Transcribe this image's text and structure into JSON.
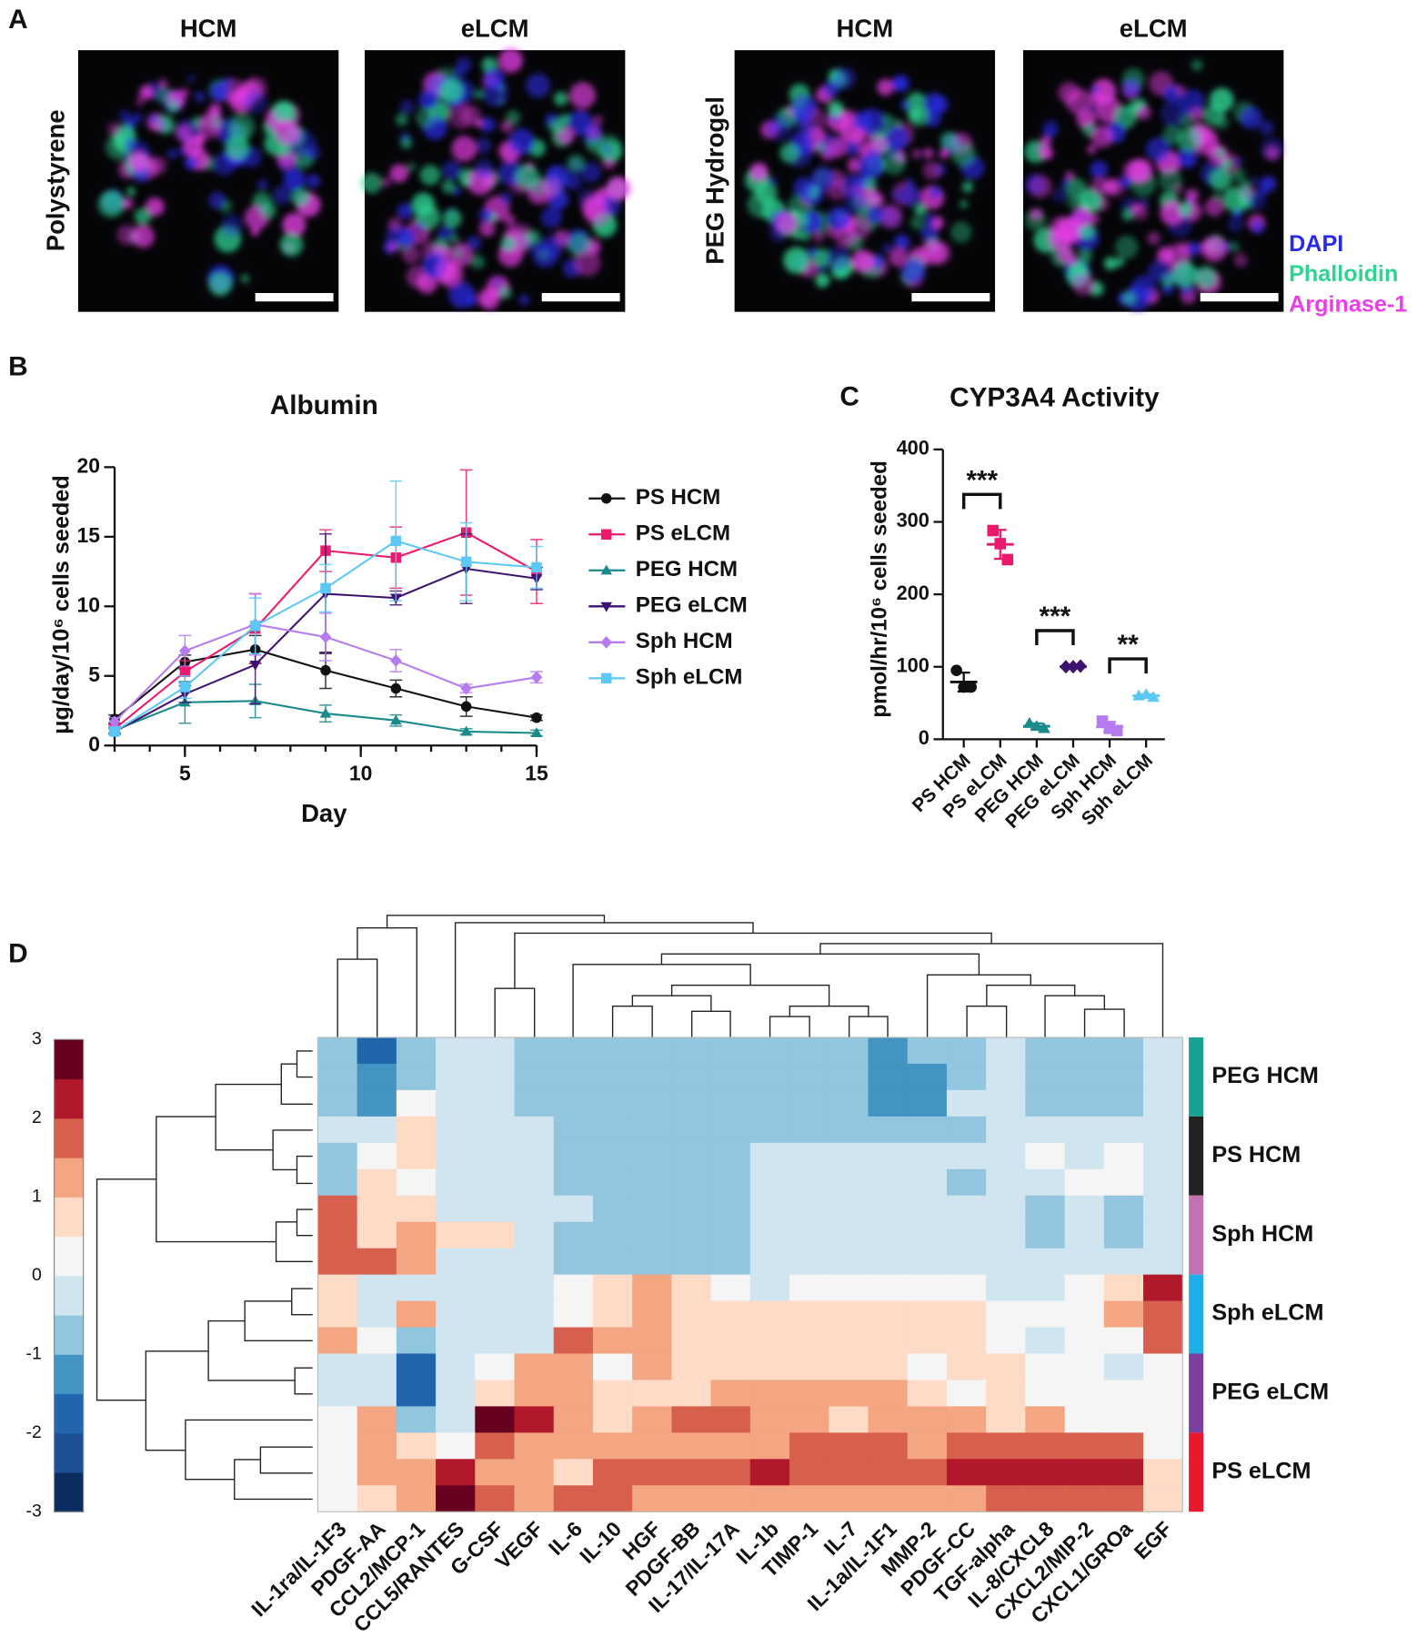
{
  "panel_labels": [
    "A",
    "B",
    "C",
    "D"
  ],
  "microscopy": {
    "column_titles": [
      "HCM",
      "eLCM",
      "HCM",
      "eLCM"
    ],
    "row_titles": [
      "Polystyrene",
      "PEG Hydrogel"
    ],
    "stains": [
      {
        "name": "DAPI",
        "color": "#2a2ae6"
      },
      {
        "name": "Phalloidin",
        "color": "#2fd493"
      },
      {
        "name": "Arginase-1",
        "color": "#ea3fe8"
      }
    ]
  },
  "chart_data": [
    {
      "type": "line",
      "title": "Albumin",
      "x_label": "Day",
      "y_label": "μg/day/10⁶ cells seeded",
      "x": [
        3,
        5,
        7,
        9,
        11,
        13,
        15
      ],
      "xlim": [
        3,
        15
      ],
      "xticks": [
        5,
        10,
        15
      ],
      "ylim": [
        0,
        20
      ],
      "yticks": [
        0,
        5,
        10,
        15,
        20
      ],
      "legend": "right",
      "series": [
        {
          "name": "PS HCM",
          "color": "#111111",
          "marker": "circle",
          "values": [
            1.9,
            6.0,
            6.9,
            5.4,
            4.1,
            2.8,
            2.0
          ],
          "errors": [
            0.3,
            0.5,
            1.0,
            1.3,
            0.6,
            0.7,
            0.2
          ]
        },
        {
          "name": "PS eLCM",
          "color": "#ec1a6c",
          "marker": "square",
          "values": [
            1.2,
            5.3,
            8.4,
            14.0,
            13.5,
            15.3,
            12.5
          ],
          "errors": [
            0.3,
            0.8,
            2.5,
            1.5,
            2.2,
            4.5,
            2.3
          ]
        },
        {
          "name": "PEG HCM",
          "color": "#1a8a8a",
          "marker": "triangle",
          "values": [
            1.1,
            3.1,
            3.2,
            2.3,
            1.8,
            1.0,
            0.9
          ],
          "errors": [
            0.2,
            1.5,
            1.2,
            0.6,
            0.4,
            0.2,
            0.2
          ]
        },
        {
          "name": "PEG eLCM",
          "color": "#3d1270",
          "marker": "triangle-down",
          "values": [
            1.0,
            3.7,
            5.8,
            10.9,
            10.6,
            12.7,
            12.0
          ],
          "errors": [
            0.2,
            0.6,
            2.8,
            4.3,
            0.5,
            2.5,
            0.8
          ]
        },
        {
          "name": "Sph HCM",
          "color": "#b57bef",
          "marker": "diamond",
          "values": [
            1.7,
            6.8,
            8.7,
            7.8,
            6.1,
            4.1,
            4.9
          ],
          "errors": [
            0.3,
            1.1,
            2.2,
            1.7,
            0.8,
            0.3,
            0.4
          ]
        },
        {
          "name": "Sph eLCM",
          "color": "#5bc8f5",
          "marker": "square",
          "values": [
            1.0,
            4.2,
            8.6,
            11.3,
            14.7,
            13.2,
            12.8
          ],
          "errors": [
            0.2,
            0.8,
            2.0,
            1.7,
            4.3,
            2.8,
            1.5
          ]
        }
      ]
    },
    {
      "type": "dot",
      "title": "CYP3A4 Activity",
      "y_label": "pmol/hr/10⁶ cells seeded",
      "categories": [
        "PS HCM",
        "PS eLCM",
        "PEG HCM",
        "PEG eLCM",
        "Sph HCM",
        "Sph eLCM"
      ],
      "colors": [
        "#111111",
        "#ec1a6c",
        "#1a8a8a",
        "#3d1270",
        "#b57bef",
        "#5bc8f5"
      ],
      "markers": [
        "circle",
        "square",
        "triangle",
        "diamond",
        "square",
        "triangle"
      ],
      "values": [
        [
          95,
          72,
          72
        ],
        [
          288,
          270,
          248
        ],
        [
          22,
          18,
          15
        ],
        [
          100,
          100,
          101
        ],
        [
          25,
          15,
          12
        ],
        [
          60,
          62,
          58
        ]
      ],
      "means": [
        79,
        269,
        18,
        100,
        17,
        60
      ],
      "sd": [
        13,
        20,
        4,
        1,
        7,
        2
      ],
      "ylim": [
        0,
        400
      ],
      "yticks": [
        0,
        100,
        200,
        300,
        400
      ],
      "annotations": [
        {
          "text": "***",
          "between": [
            "PS HCM",
            "PS eLCM"
          ]
        },
        {
          "text": "***",
          "between": [
            "PEG HCM",
            "PEG eLCM"
          ]
        },
        {
          "text": "**",
          "between": [
            "Sph HCM",
            "Sph eLCM"
          ]
        }
      ]
    },
    {
      "type": "heatmap",
      "columns": [
        "IL-1ra/IL-1F3",
        "PDGF-AA",
        "CCL2/MCP-1",
        "CCL5/RANTES",
        "G-CSF",
        "VEGF",
        "IL-6",
        "IL-10",
        "HGF",
        "PDGF-BB",
        "IL-17/IL-17A",
        "IL-1b",
        "TIMP-1",
        "IL-7",
        "IL-1a/IL-1F1",
        "MMP-2",
        "PDGF-CC",
        "TGF-alpha",
        "IL-8/CXCL8",
        "CXCL2/MIP-2",
        "CXCL1/GROa",
        "EGF"
      ],
      "row_groups": [
        {
          "name": "PEG HCM",
          "color": "#16a393"
        },
        {
          "name": "PS HCM",
          "color": "#222222"
        },
        {
          "name": "Sph HCM",
          "color": "#c271b3"
        },
        {
          "name": "Sph eLCM",
          "color": "#1eaee8"
        },
        {
          "name": "PEG eLCM",
          "color": "#7b3fa0"
        },
        {
          "name": "PS eLCM",
          "color": "#e8192c"
        }
      ],
      "zlim": [
        -3,
        3
      ],
      "zticks": [
        -3,
        -2,
        -1,
        0,
        1,
        2,
        3
      ],
      "colors": [
        "#0b2c5e",
        "#1d4f94",
        "#2166ac",
        "#4393c3",
        "#92c5de",
        "#d1e5f0",
        "#f5f5f5",
        "#fddbc7",
        "#f4a582",
        "#d6604d",
        "#b2182b",
        "#67001f"
      ],
      "values": [
        [
          -0.75,
          -1.75,
          -0.75,
          -0.25,
          -0.25,
          -0.75,
          -0.75,
          -0.75,
          -0.75,
          -0.75,
          -0.75,
          -0.75,
          -0.75,
          -0.75,
          -1.25,
          -0.75,
          -0.75,
          -0.25,
          -0.75,
          -0.75,
          -0.75,
          -0.25
        ],
        [
          -0.75,
          -1.25,
          -0.75,
          -0.25,
          -0.25,
          -0.75,
          -0.75,
          -0.75,
          -0.75,
          -0.75,
          -0.75,
          -0.75,
          -0.75,
          -0.75,
          -1.25,
          -1.25,
          -0.75,
          -0.25,
          -0.75,
          -0.75,
          -0.75,
          -0.25
        ],
        [
          -0.75,
          -1.25,
          0.25,
          -0.25,
          -0.25,
          -0.75,
          -0.75,
          -0.75,
          -0.75,
          -0.75,
          -0.75,
          -0.75,
          -0.75,
          -0.75,
          -1.25,
          -1.25,
          -0.25,
          -0.25,
          -0.75,
          -0.75,
          -0.75,
          -0.25
        ],
        [
          -0.25,
          -0.25,
          0.75,
          -0.25,
          -0.25,
          -0.25,
          -0.75,
          -0.75,
          -0.75,
          -0.75,
          -0.75,
          -0.75,
          -0.75,
          -0.75,
          -0.75,
          -0.75,
          -0.75,
          -0.25,
          -0.25,
          -0.25,
          -0.25,
          -0.25
        ],
        [
          -0.75,
          0.25,
          0.75,
          -0.25,
          -0.25,
          -0.25,
          -0.75,
          -0.75,
          -0.75,
          -0.75,
          -0.75,
          -0.25,
          -0.25,
          -0.25,
          -0.25,
          -0.25,
          -0.25,
          -0.25,
          0.25,
          -0.25,
          0.25,
          -0.25
        ],
        [
          -0.75,
          0.75,
          0.25,
          -0.25,
          -0.25,
          -0.25,
          -0.75,
          -0.75,
          -0.75,
          -0.75,
          -0.75,
          -0.25,
          -0.25,
          -0.25,
          -0.25,
          -0.25,
          -0.75,
          -0.25,
          -0.25,
          0.25,
          0.25,
          -0.25
        ],
        [
          1.75,
          0.75,
          0.75,
          -0.25,
          -0.25,
          -0.25,
          -0.25,
          -0.75,
          -0.75,
          -0.75,
          -0.75,
          -0.25,
          -0.25,
          -0.25,
          -0.25,
          -0.25,
          -0.25,
          -0.25,
          -0.75,
          -0.25,
          -0.75,
          -0.25
        ],
        [
          1.75,
          0.75,
          1.25,
          0.75,
          0.75,
          -0.25,
          -0.75,
          -0.75,
          -0.75,
          -0.75,
          -0.75,
          -0.25,
          -0.25,
          -0.25,
          -0.25,
          -0.25,
          -0.25,
          -0.25,
          -0.75,
          -0.25,
          -0.75,
          -0.25
        ],
        [
          1.75,
          1.75,
          1.25,
          -0.25,
          -0.25,
          -0.25,
          -0.75,
          -0.75,
          -0.75,
          -0.75,
          -0.75,
          -0.25,
          -0.25,
          -0.25,
          -0.25,
          -0.25,
          -0.25,
          -0.25,
          -0.25,
          -0.25,
          -0.25,
          -0.25
        ],
        [
          0.75,
          -0.25,
          -0.25,
          -0.25,
          -0.25,
          -0.25,
          0.25,
          0.75,
          1.25,
          0.75,
          0.25,
          -0.25,
          0.25,
          0.25,
          0.25,
          0.25,
          0.25,
          -0.25,
          -0.25,
          0.25,
          0.75,
          2.25
        ],
        [
          0.75,
          -0.25,
          1.25,
          -0.25,
          -0.25,
          -0.25,
          0.25,
          0.75,
          1.25,
          0.75,
          0.75,
          0.75,
          0.75,
          0.75,
          0.75,
          0.75,
          0.75,
          0.25,
          0.25,
          0.25,
          1.25,
          1.75
        ],
        [
          1.25,
          0.25,
          -0.75,
          -0.25,
          -0.25,
          -0.25,
          1.75,
          1.25,
          1.25,
          0.75,
          0.75,
          0.75,
          0.75,
          0.75,
          0.75,
          0.75,
          0.75,
          0.25,
          -0.25,
          0.25,
          0.25,
          1.75
        ],
        [
          -0.25,
          -0.25,
          -1.75,
          -0.25,
          0.25,
          1.25,
          1.25,
          0.25,
          1.25,
          0.75,
          0.75,
          0.75,
          0.75,
          0.75,
          0.75,
          0.25,
          0.75,
          0.75,
          0.25,
          0.25,
          -0.25,
          0.25
        ],
        [
          -0.25,
          -0.25,
          -1.75,
          -0.25,
          0.75,
          1.25,
          1.25,
          0.75,
          0.75,
          0.75,
          1.25,
          1.25,
          1.25,
          1.25,
          1.25,
          0.75,
          0.25,
          0.75,
          0.25,
          0.25,
          0.25,
          0.25
        ],
        [
          0.25,
          1.25,
          -0.75,
          -0.25,
          2.75,
          2.25,
          1.25,
          0.75,
          1.25,
          1.75,
          1.75,
          1.25,
          1.25,
          0.75,
          1.25,
          1.25,
          1.25,
          0.75,
          1.25,
          0.25,
          0.25,
          0.25
        ],
        [
          0.25,
          1.25,
          0.75,
          0.25,
          1.75,
          1.25,
          1.25,
          1.25,
          1.25,
          1.25,
          1.25,
          1.25,
          1.75,
          1.75,
          1.75,
          1.25,
          1.75,
          1.75,
          1.75,
          1.75,
          1.75,
          0.25
        ],
        [
          0.25,
          1.25,
          1.25,
          2.25,
          1.25,
          1.25,
          0.75,
          1.75,
          1.75,
          1.75,
          1.75,
          2.25,
          1.75,
          1.75,
          1.75,
          1.75,
          2.25,
          2.25,
          2.25,
          2.25,
          2.25,
          0.75
        ],
        [
          0.25,
          0.75,
          1.25,
          2.75,
          1.75,
          1.25,
          1.75,
          1.75,
          1.25,
          1.25,
          1.25,
          1.25,
          1.25,
          1.25,
          1.25,
          1.25,
          1.25,
          1.75,
          1.75,
          1.75,
          1.75,
          0.75
        ]
      ]
    }
  ]
}
